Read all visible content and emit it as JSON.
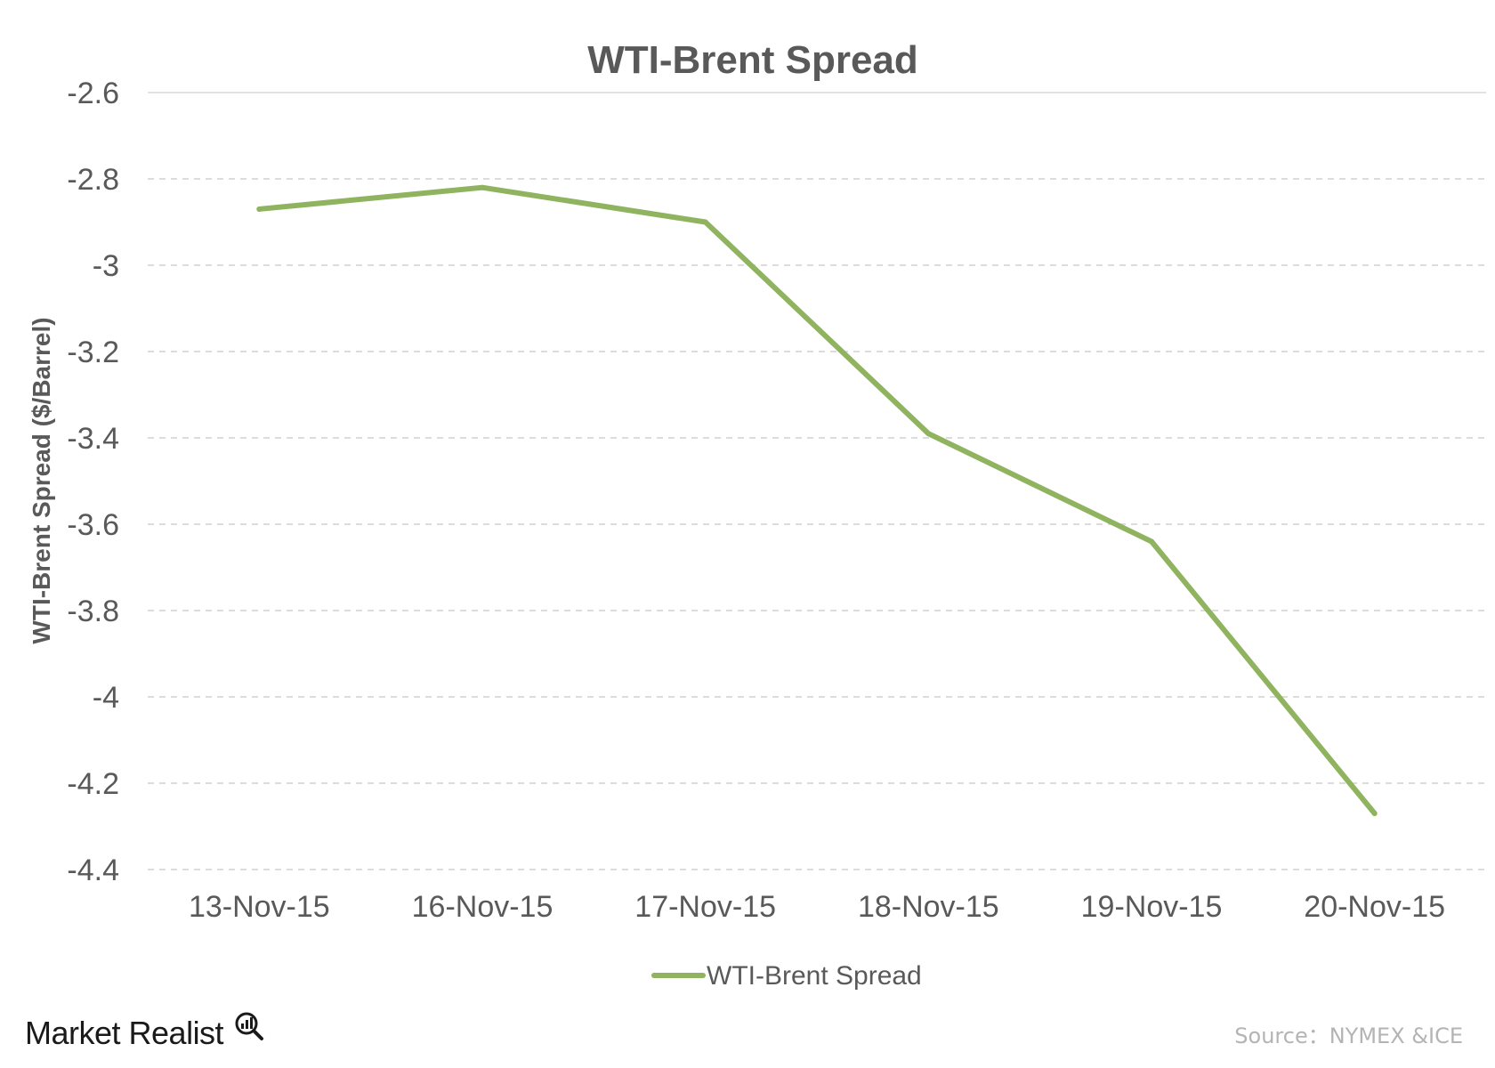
{
  "chart_data": {
    "type": "line",
    "title": "WTI-Brent Spread",
    "xlabel": "",
    "ylabel": "WTI-Brent Spread ($/Barrel)",
    "categories": [
      "13-Nov-15",
      "16-Nov-15",
      "17-Nov-15",
      "18-Nov-15",
      "19-Nov-15",
      "20-Nov-15"
    ],
    "series": [
      {
        "name": "WTI-Brent Spread",
        "values": [
          -2.87,
          -2.82,
          -2.9,
          -3.39,
          -3.64,
          -4.27
        ]
      }
    ],
    "ylim": [
      -4.4,
      -2.6
    ],
    "yticks": [
      "-2.6",
      "-2.8",
      "-3",
      "-3.2",
      "-3.4",
      "-3.6",
      "-3.8",
      "-4",
      "-4.2",
      "-4.4"
    ],
    "ytick_values": [
      -2.6,
      -2.8,
      -3,
      -3.2,
      -3.4,
      -3.6,
      -3.8,
      -4,
      -4.2,
      -4.4
    ],
    "grid": true,
    "legend_position": "bottom",
    "series_color": "#8FB35E"
  },
  "footer": {
    "logo_text": "Market Realist",
    "source": "Source：NYMEX &ICE"
  }
}
